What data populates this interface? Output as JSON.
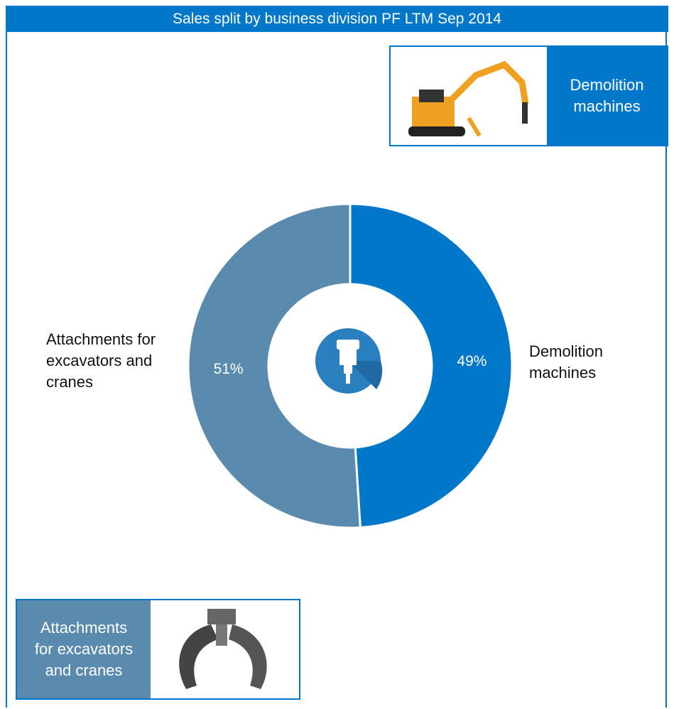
{
  "chart_data": {
    "type": "pie",
    "title": "Sales split by business division PF LTM Sep 2014",
    "categories": [
      "Demolition machines",
      "Attachments for excavators and cranes"
    ],
    "values": [
      49,
      51
    ],
    "value_labels": [
      "49%",
      "51%"
    ],
    "colors": [
      "#0077c8",
      "#5a8aae"
    ],
    "donut": true
  }
}
